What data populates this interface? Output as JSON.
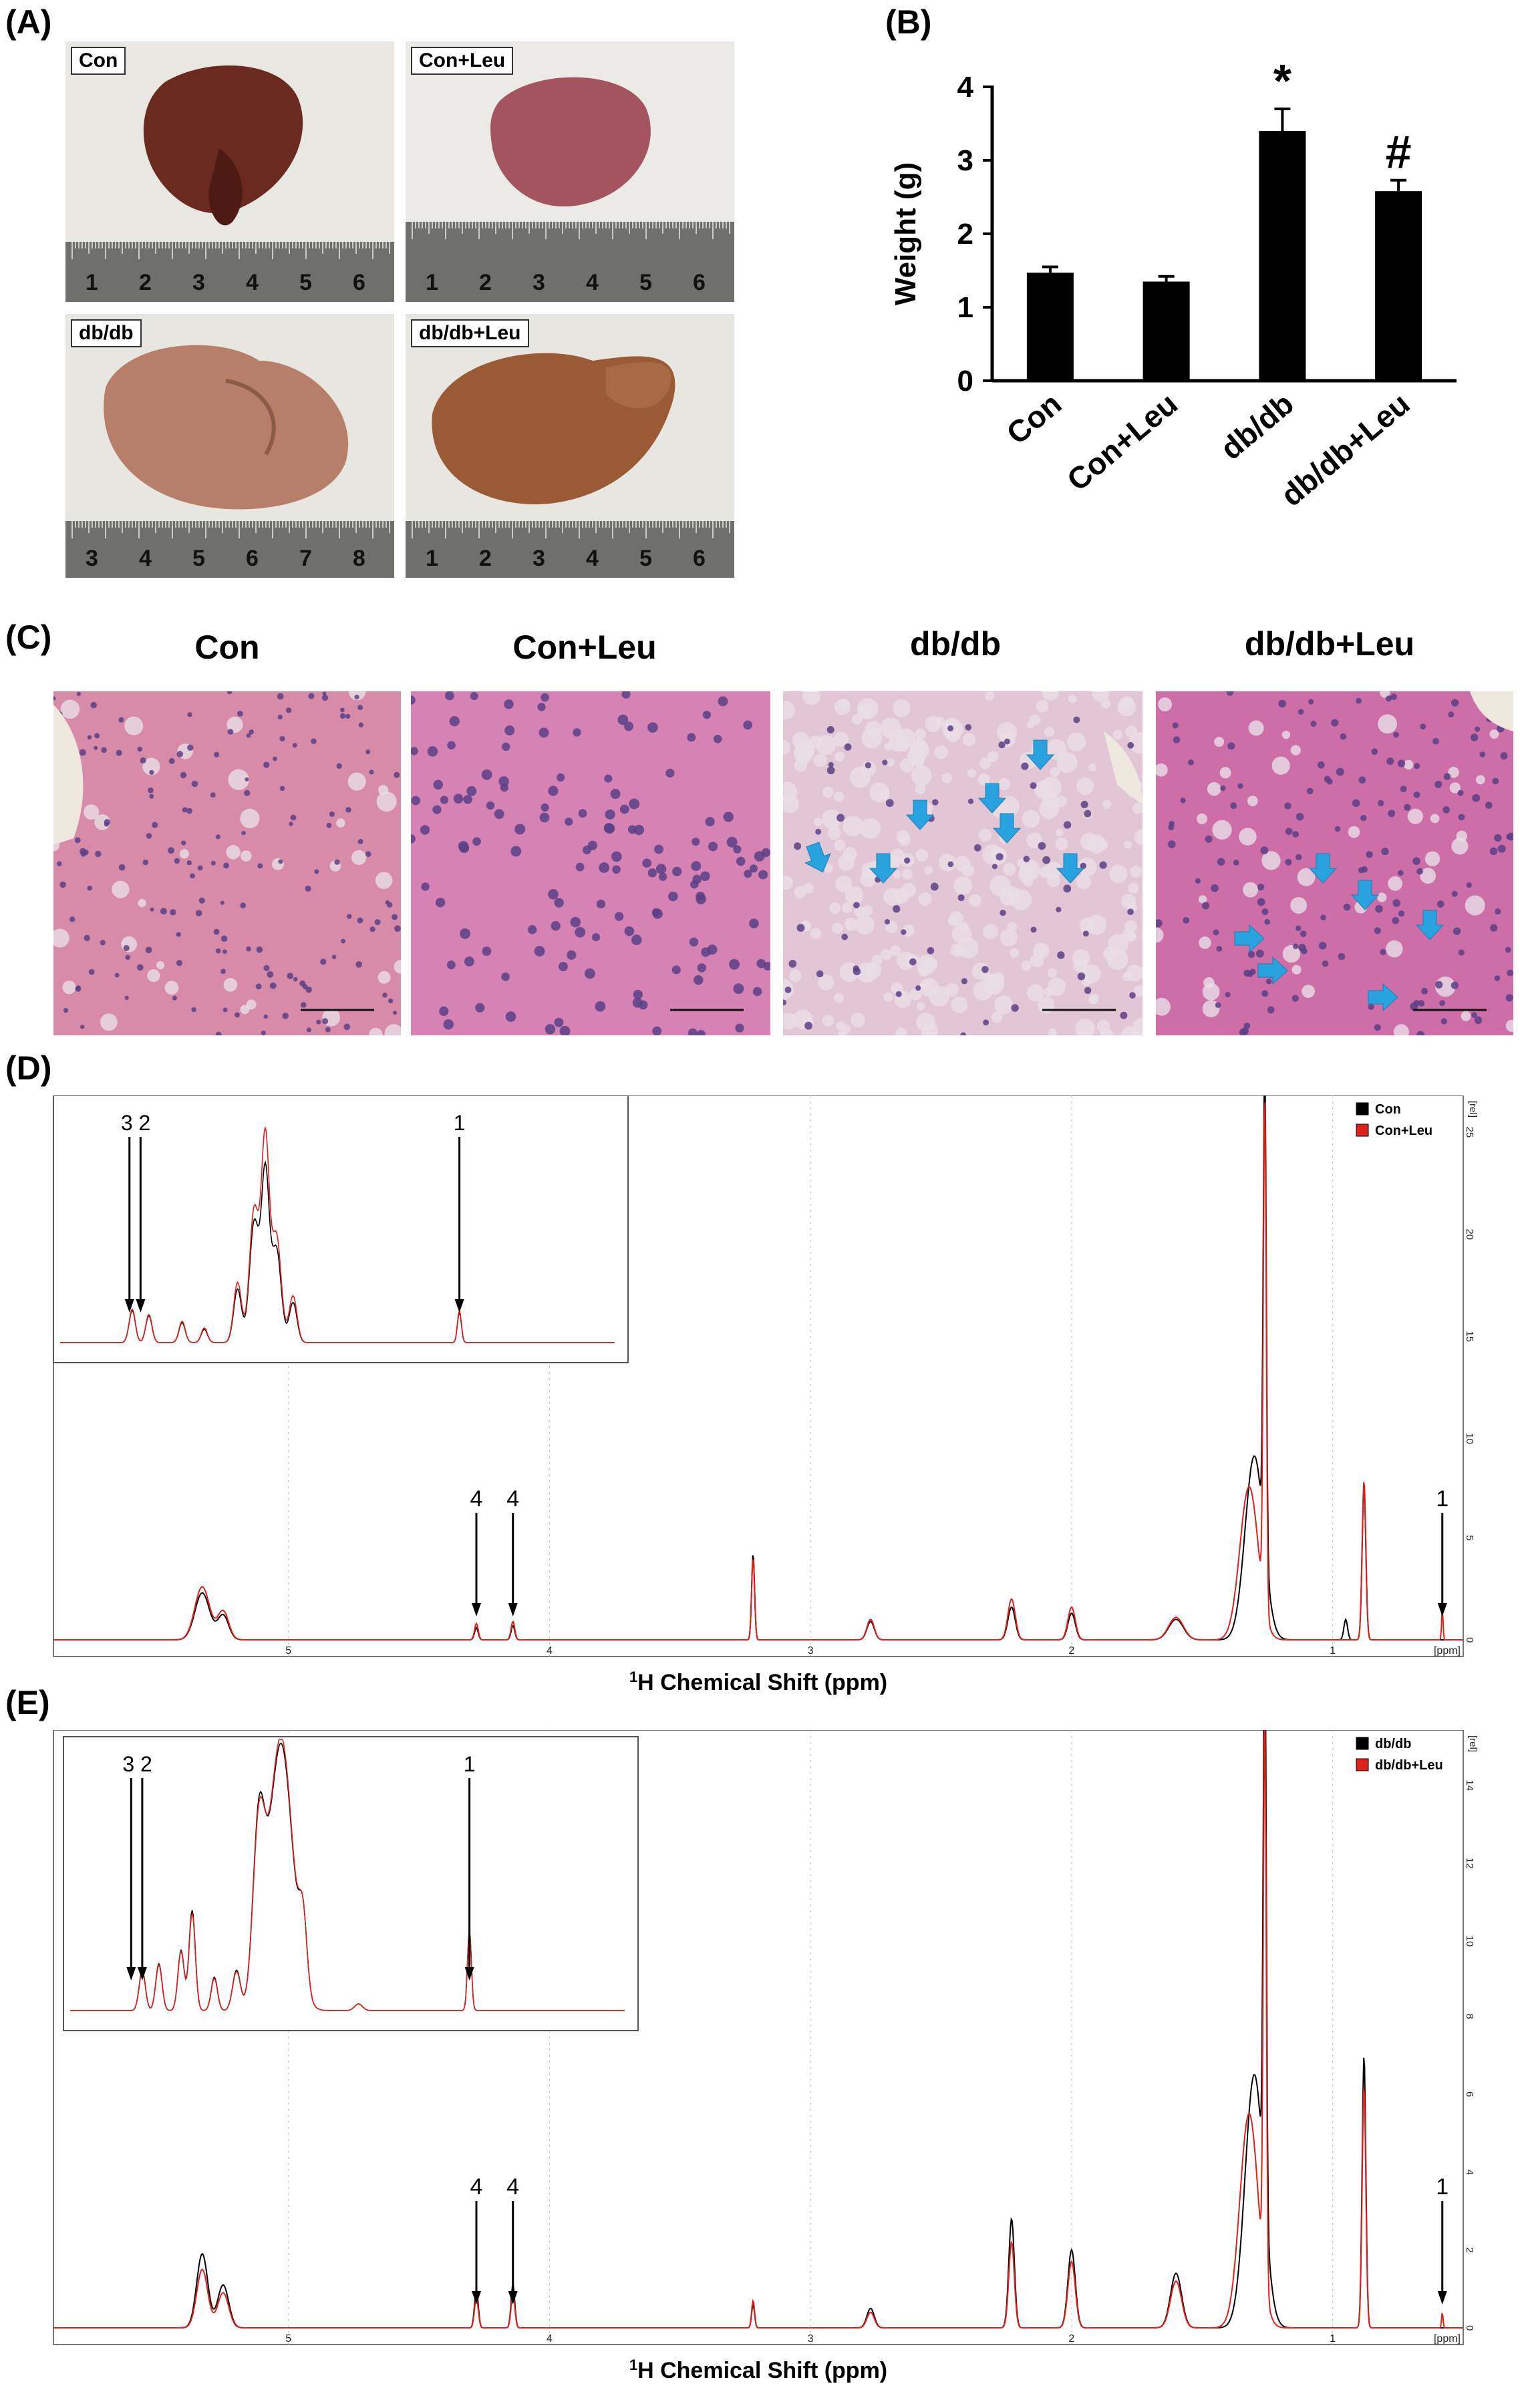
{
  "panel_labels": {
    "A": "(A)",
    "B": "(B)",
    "C": "(C)",
    "D": "(D)",
    "E": "(E)"
  },
  "panel_a": {
    "photos": [
      {
        "label": "Con",
        "liver_color": "#6b2a20"
      },
      {
        "label": "Con+Leu",
        "liver_color": "#a4545e"
      },
      {
        "label": "db/db",
        "liver_color": "#b77f6a"
      },
      {
        "label": "db/db+Leu",
        "liver_color": "#9a5a36"
      }
    ],
    "ruler_numbers": [
      [
        "1",
        "2",
        "3",
        "4",
        "5",
        "6"
      ],
      [
        "1",
        "2",
        "3",
        "4",
        "5",
        "6"
      ],
      [
        "3",
        "4",
        "5",
        "6",
        "7",
        "8"
      ],
      [
        "1",
        "2",
        "3",
        "4",
        "5",
        "6"
      ]
    ]
  },
  "panel_c": {
    "titles": [
      "Con",
      "Con+Leu",
      "db/db",
      "db/db+Leu"
    ],
    "stain_color": "#c55f9a",
    "arrow_color": "#29a3e0"
  },
  "chart_data": [
    {
      "type": "bar",
      "panel": "B",
      "categories": [
        "Con",
        "Con+Leu",
        "db/db",
        "db/db+Leu"
      ],
      "values": [
        1.47,
        1.35,
        3.4,
        2.58
      ],
      "errors": [
        0.08,
        0.07,
        0.3,
        0.15
      ],
      "annotations": [
        "",
        "",
        "*",
        "#"
      ],
      "ylabel": "Weight (g)",
      "ylim": [
        0,
        4
      ],
      "yticks": [
        0,
        1,
        2,
        3,
        4
      ],
      "bar_color": "#000000"
    },
    {
      "type": "line",
      "panel": "D",
      "xlabel_main": "H Chemical Shift (ppm)",
      "xlabel_sup": "1",
      "xticks": [
        "5",
        "4",
        "3",
        "2",
        "1"
      ],
      "xunit": "[ppm]",
      "yunit": "[rel]",
      "yticks": [
        "0",
        "5",
        "10",
        "15",
        "20",
        "25"
      ],
      "series": [
        {
          "name": "Con",
          "color": "#000000"
        },
        {
          "name": "Con+Leu",
          "color": "#e0201a"
        }
      ],
      "peak_labels": [
        "4",
        "4",
        "1"
      ],
      "inset_peak_labels": [
        "3",
        "2",
        "1"
      ]
    },
    {
      "type": "line",
      "panel": "E",
      "xlabel_main": "H Chemical Shift (ppm)",
      "xlabel_sup": "1",
      "xticks": [
        "5",
        "4",
        "3",
        "2",
        "1"
      ],
      "xunit": "[ppm]",
      "yunit": "[rel]",
      "yticks": [
        "0",
        "2",
        "4",
        "6",
        "8",
        "10",
        "12",
        "14"
      ],
      "series": [
        {
          "name": "db/db",
          "color": "#000000"
        },
        {
          "name": "db/db+Leu",
          "color": "#e0201a"
        }
      ],
      "peak_labels": [
        "4",
        "4",
        "1"
      ],
      "inset_peak_labels": [
        "3",
        "2",
        "1"
      ]
    }
  ]
}
